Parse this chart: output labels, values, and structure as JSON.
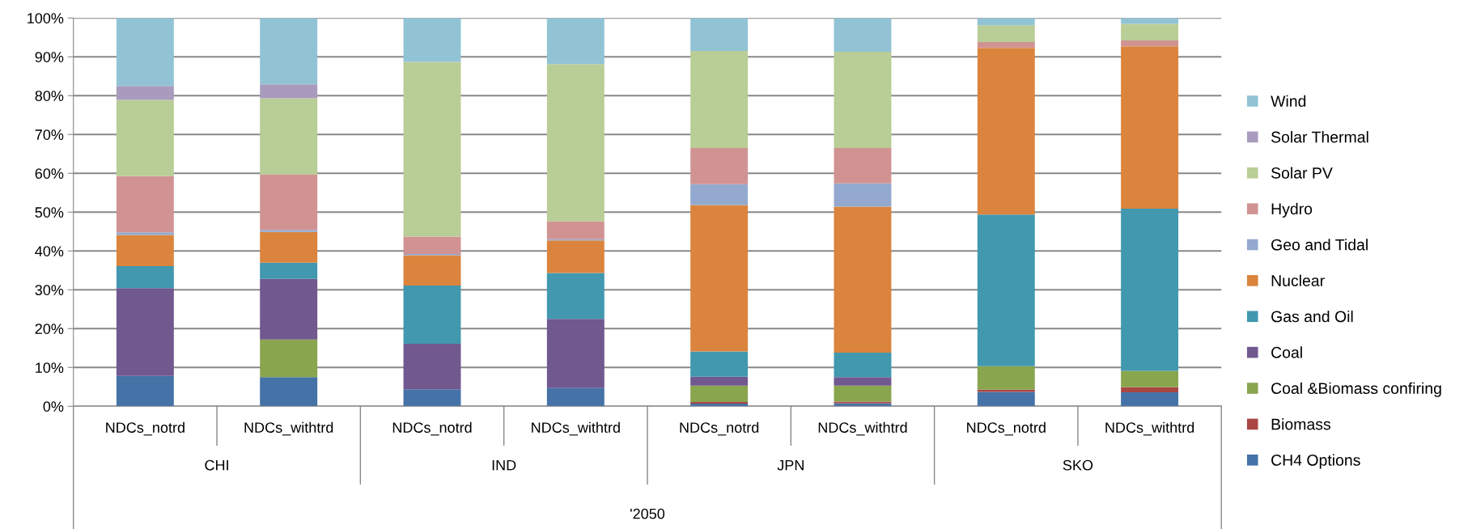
{
  "chart_data": {
    "type": "bar",
    "stacked": true,
    "categories": [
      "NDCs_notrd",
      "NDCs_withtrd",
      "NDCs_notrd",
      "NDCs_withtrd",
      "NDCs_notrd",
      "NDCs_withtrd",
      "NDCs_notrd",
      "NDCs_withtrd"
    ],
    "annotations": [
      "CHI",
      "IND",
      "JPN",
      "SKO",
      "'2050"
    ],
    "series": [
      {
        "name": "CH4 Options",
        "color": "#4572a7",
        "values": [
          7.8,
          7.5,
          4.4,
          4.7,
          0.7,
          0.8,
          3.7,
          3.6
        ]
      },
      {
        "name": "Biomass",
        "color": "#aa4643",
        "values": [
          0,
          0,
          0,
          0,
          0.4,
          0.4,
          0.6,
          1.3
        ]
      },
      {
        "name": "Coal &Biomass confiring",
        "color": "#89a54e",
        "values": [
          0,
          9.7,
          0,
          0,
          4.2,
          4.1,
          6.0,
          4.2
        ]
      },
      {
        "name": "Coal",
        "color": "#71588f",
        "values": [
          22.6,
          15.6,
          11.7,
          17.8,
          2.3,
          2.2,
          0,
          0
        ]
      },
      {
        "name": "Gas and Oil",
        "color": "#4198af",
        "values": [
          5.7,
          4.2,
          15.0,
          11.8,
          6.5,
          6.3,
          39.1,
          41.8
        ]
      },
      {
        "name": "Nuclear",
        "color": "#db843d",
        "values": [
          8.0,
          7.9,
          7.8,
          8.4,
          37.7,
          37.6,
          42.9,
          41.8
        ]
      },
      {
        "name": "Geo and Tidal",
        "color": "#93a9cf",
        "values": [
          0.7,
          0.5,
          0.3,
          0.3,
          5.4,
          6.0,
          0,
          0
        ]
      },
      {
        "name": "Hydro",
        "color": "#d19392",
        "values": [
          14.5,
          14.3,
          4.5,
          4.6,
          9.3,
          9.1,
          1.5,
          1.5
        ]
      },
      {
        "name": "Solar PV",
        "color": "#b9cd96",
        "values": [
          19.6,
          19.6,
          45.0,
          40.5,
          25.0,
          24.8,
          4.3,
          4.3
        ]
      },
      {
        "name": "Solar Thermal",
        "color": "#a99bbd",
        "values": [
          3.6,
          3.6,
          0,
          0,
          0,
          0,
          0,
          0
        ]
      },
      {
        "name": "Wind",
        "color": "#92c3d5",
        "values": [
          17.5,
          17.1,
          11.3,
          11.9,
          8.5,
          8.7,
          1.9,
          1.5
        ]
      }
    ],
    "ylim": [
      0,
      100
    ],
    "yticks": [
      {
        "value": 0,
        "label": "0%"
      },
      {
        "value": 10,
        "label": "10%"
      },
      {
        "value": 20,
        "label": "20%"
      },
      {
        "value": 30,
        "label": "30%"
      },
      {
        "value": 40,
        "label": "40%"
      },
      {
        "value": 50,
        "label": "50%"
      },
      {
        "value": 60,
        "label": "60%"
      },
      {
        "value": 70,
        "label": "70%"
      },
      {
        "value": 80,
        "label": "80%"
      },
      {
        "value": 90,
        "label": "90%"
      },
      {
        "value": 100,
        "label": "100%"
      }
    ],
    "grid": "y",
    "legend": "right"
  }
}
